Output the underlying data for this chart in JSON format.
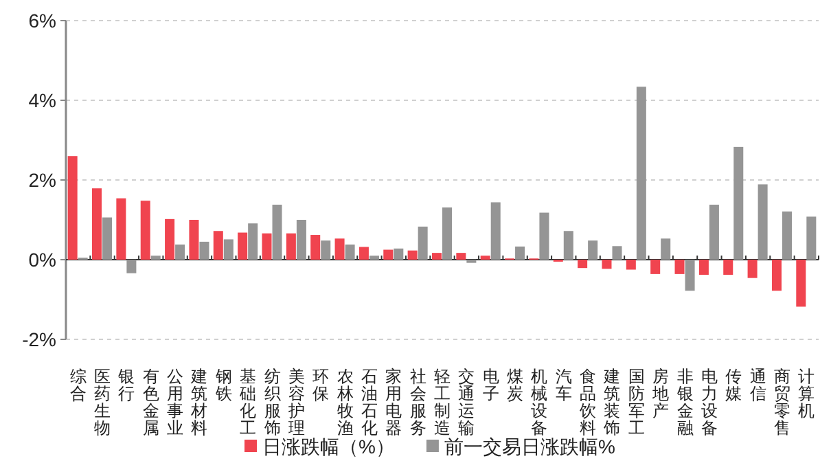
{
  "chart_data": {
    "type": "bar",
    "categories": [
      "综合",
      "医药生物",
      "银行",
      "有色金属",
      "公用事业",
      "建筑材料",
      "钢铁",
      "基础化工",
      "纺织服饰",
      "美容护理",
      "环保",
      "农林牧渔",
      "石油石化",
      "家用电器",
      "社会服务",
      "轻工制造",
      "交通运输",
      "电子",
      "煤炭",
      "机械设备",
      "汽车",
      "食品饮料",
      "建筑装饰",
      "国防军工",
      "房地产",
      "非银金融",
      "电力设备",
      "传媒",
      "通信",
      "商贸零售",
      "计算机"
    ],
    "series": [
      {
        "name": "日涨跌幅（%）",
        "color": "#f0444f",
        "values": [
          2.6,
          1.79,
          1.54,
          1.48,
          1.02,
          1.0,
          0.72,
          0.68,
          0.66,
          0.66,
          0.62,
          0.53,
          0.32,
          0.25,
          0.23,
          0.17,
          0.17,
          0.1,
          0.03,
          0.03,
          -0.05,
          -0.21,
          -0.23,
          -0.25,
          -0.36,
          -0.36,
          -0.38,
          -0.38,
          -0.46,
          -0.78,
          -1.18
        ]
      },
      {
        "name": "前一交易日涨跌幅%",
        "color": "#959595",
        "values": [
          0.05,
          1.06,
          -0.34,
          0.1,
          0.38,
          0.45,
          0.51,
          0.91,
          1.38,
          1.0,
          0.48,
          0.38,
          0.1,
          0.28,
          0.83,
          1.31,
          -0.08,
          1.44,
          0.33,
          1.18,
          0.72,
          0.48,
          0.34,
          4.34,
          0.53,
          -0.78,
          1.38,
          2.83,
          1.89,
          1.21,
          1.08
        ]
      }
    ],
    "ylim": [
      -2,
      6
    ],
    "yticks": [
      {
        "value": -2,
        "label": "-2%"
      },
      {
        "value": 0,
        "label": "0%"
      },
      {
        "value": 2,
        "label": "2%"
      },
      {
        "value": 4,
        "label": "4%"
      },
      {
        "value": 6,
        "label": "6%"
      }
    ],
    "grid": "y",
    "legend": "bottom"
  }
}
